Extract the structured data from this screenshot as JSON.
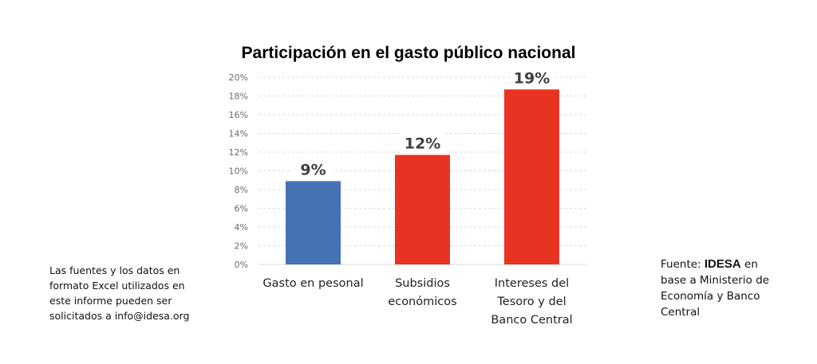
{
  "chart_data": {
    "type": "bar",
    "title": "Participación en el gasto público nacional",
    "xlabel": "",
    "ylabel": "",
    "ylim": [
      0,
      20
    ],
    "yticks": [
      0,
      2,
      4,
      6,
      8,
      10,
      12,
      14,
      16,
      18,
      20
    ],
    "ytick_labels": [
      "0%",
      "2%",
      "4%",
      "6%",
      "8%",
      "10%",
      "12%",
      "14%",
      "16%",
      "18%",
      "20%"
    ],
    "grid": true,
    "categories": [
      [
        "Gasto en pesonal"
      ],
      [
        "Subsidios",
        "económicos"
      ],
      [
        "Intereses del",
        "Tesoro y del",
        "Banco Central"
      ]
    ],
    "values": [
      8.9,
      11.7,
      18.7
    ],
    "data_labels": [
      "9%",
      "12%",
      "19%"
    ],
    "colors": [
      "#4472b4",
      "#e83323",
      "#e83323"
    ]
  },
  "notes": {
    "left": [
      "Las fuentes y los datos en",
      "formato Excel utilizados en",
      "este informe pueden ser",
      "solicitados a info@idesa.org"
    ],
    "right_prefix": "Fuente: ",
    "right_brand": "IDESA",
    "right_suffix": " en",
    "right_lines": [
      "base a Ministerio de",
      "Economía y Banco",
      "Central"
    ]
  }
}
